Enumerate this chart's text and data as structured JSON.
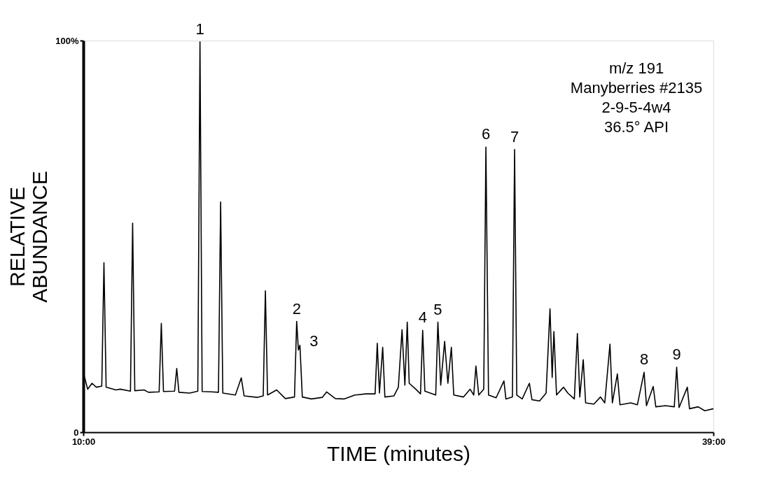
{
  "chart_data": {
    "type": "line",
    "xlabel": "TIME (minutes)",
    "ylabel": "RELATIVE\nABUNDANCE",
    "xlim": [
      10,
      39
    ],
    "ylim": [
      0,
      100
    ],
    "xticks": [
      {
        "value": 10,
        "label": "10:00"
      },
      {
        "value": 39,
        "label": "39:00"
      }
    ],
    "yticks": [
      0,
      {
        "value": 100,
        "label": "100%"
      }
    ],
    "marker": "none",
    "line_style": "solid",
    "series": [
      {
        "color": "#000000",
        "x": [
          10.05,
          10.2,
          10.4,
          10.6,
          10.85,
          10.95,
          11.05,
          11.5,
          11.7,
          12.17,
          12.27,
          12.37,
          12.8,
          13.0,
          13.49,
          13.59,
          13.69,
          14.2,
          14.3,
          14.4,
          14.9,
          15.27,
          15.37,
          15.47,
          15.9,
          16.22,
          16.32,
          16.42,
          17.0,
          17.27,
          17.4,
          18.0,
          18.28,
          18.38,
          18.48,
          18.9,
          19.3,
          19.72,
          19.82,
          19.9,
          19.97,
          20.08,
          20.5,
          21.0,
          21.2,
          21.6,
          22.0,
          22.5,
          23.0,
          23.43,
          23.53,
          23.63,
          23.78,
          23.88,
          24.3,
          24.5,
          24.67,
          24.8,
          24.91,
          25.0,
          25.3,
          25.52,
          25.62,
          25.72,
          26.22,
          26.32,
          26.45,
          26.63,
          26.78,
          26.94,
          27.05,
          27.5,
          27.8,
          27.97,
          28.07,
          28.2,
          28.43,
          28.53,
          28.65,
          29.0,
          29.36,
          29.45,
          29.75,
          29.85,
          29.95,
          30.2,
          30.53,
          30.65,
          31.0,
          31.3,
          31.48,
          31.58,
          31.66,
          31.78,
          32.1,
          32.3,
          32.6,
          32.74,
          32.85,
          33.01,
          33.12,
          33.5,
          33.8,
          34.0,
          34.24,
          34.35,
          34.58,
          34.7,
          35.2,
          35.5,
          35.81,
          35.92,
          36.23,
          36.35,
          36.8,
          37.2,
          37.31,
          37.42,
          37.8,
          37.9,
          38.3,
          38.6,
          39.0
        ],
        "values": [
          14.2,
          11.0,
          12.5,
          11.5,
          11.8,
          43.3,
          11.5,
          10.8,
          11.0,
          10.5,
          53.4,
          10.6,
          10.8,
          10.2,
          10.3,
          27.8,
          10.4,
          10.5,
          16.3,
          10.2,
          10.0,
          10.5,
          99.7,
          10.4,
          10.3,
          10.2,
          58.8,
          10.0,
          9.5,
          13.9,
          9.3,
          8.9,
          9.3,
          36.1,
          9.5,
          10.8,
          8.6,
          9.0,
          28.3,
          21.0,
          22.2,
          9.0,
          8.5,
          8.9,
          10.3,
          8.6,
          8.5,
          9.5,
          9.8,
          9.8,
          22.7,
          10.0,
          21.7,
          9.0,
          9.3,
          11.5,
          26.2,
          12.0,
          28.1,
          12.5,
          11.0,
          9.8,
          26.0,
          10.5,
          9.5,
          28.1,
          12.0,
          23.2,
          12.5,
          21.7,
          9.5,
          9.0,
          11.0,
          9.5,
          16.9,
          9.5,
          11.0,
          72.8,
          9.5,
          8.8,
          13.1,
          8.5,
          9.0,
          72.2,
          9.5,
          8.5,
          12.5,
          8.3,
          8.0,
          10.0,
          31.5,
          14.0,
          25.7,
          9.5,
          11.5,
          10.0,
          8.5,
          25.2,
          9.0,
          18.5,
          7.5,
          7.2,
          9.0,
          7.5,
          22.5,
          7.5,
          14.9,
          7.0,
          7.5,
          7.0,
          15.3,
          6.8,
          11.7,
          6.5,
          6.8,
          6.5,
          16.6,
          6.3,
          11.5,
          6.0,
          6.5,
          5.5,
          6.0
        ]
      }
    ],
    "annotations": [
      {
        "text": "1",
        "x": 15.37,
        "y": 99.7
      },
      {
        "text": "2",
        "x": 19.82,
        "y": 28.3
      },
      {
        "text": "3",
        "x": 19.97,
        "y": 22.2
      },
      {
        "text": "4",
        "x": 25.62,
        "y": 26.0
      },
      {
        "text": "5",
        "x": 26.32,
        "y": 28.1
      },
      {
        "text": "6",
        "x": 28.53,
        "y": 72.8
      },
      {
        "text": "7",
        "x": 29.85,
        "y": 72.2
      },
      {
        "text": "8",
        "x": 35.81,
        "y": 15.3
      },
      {
        "text": "9",
        "x": 37.31,
        "y": 16.6
      },
      "m/z 191",
      "Manyberries #2135",
      "2-9-5-4w4",
      "36.5° API"
    ]
  }
}
